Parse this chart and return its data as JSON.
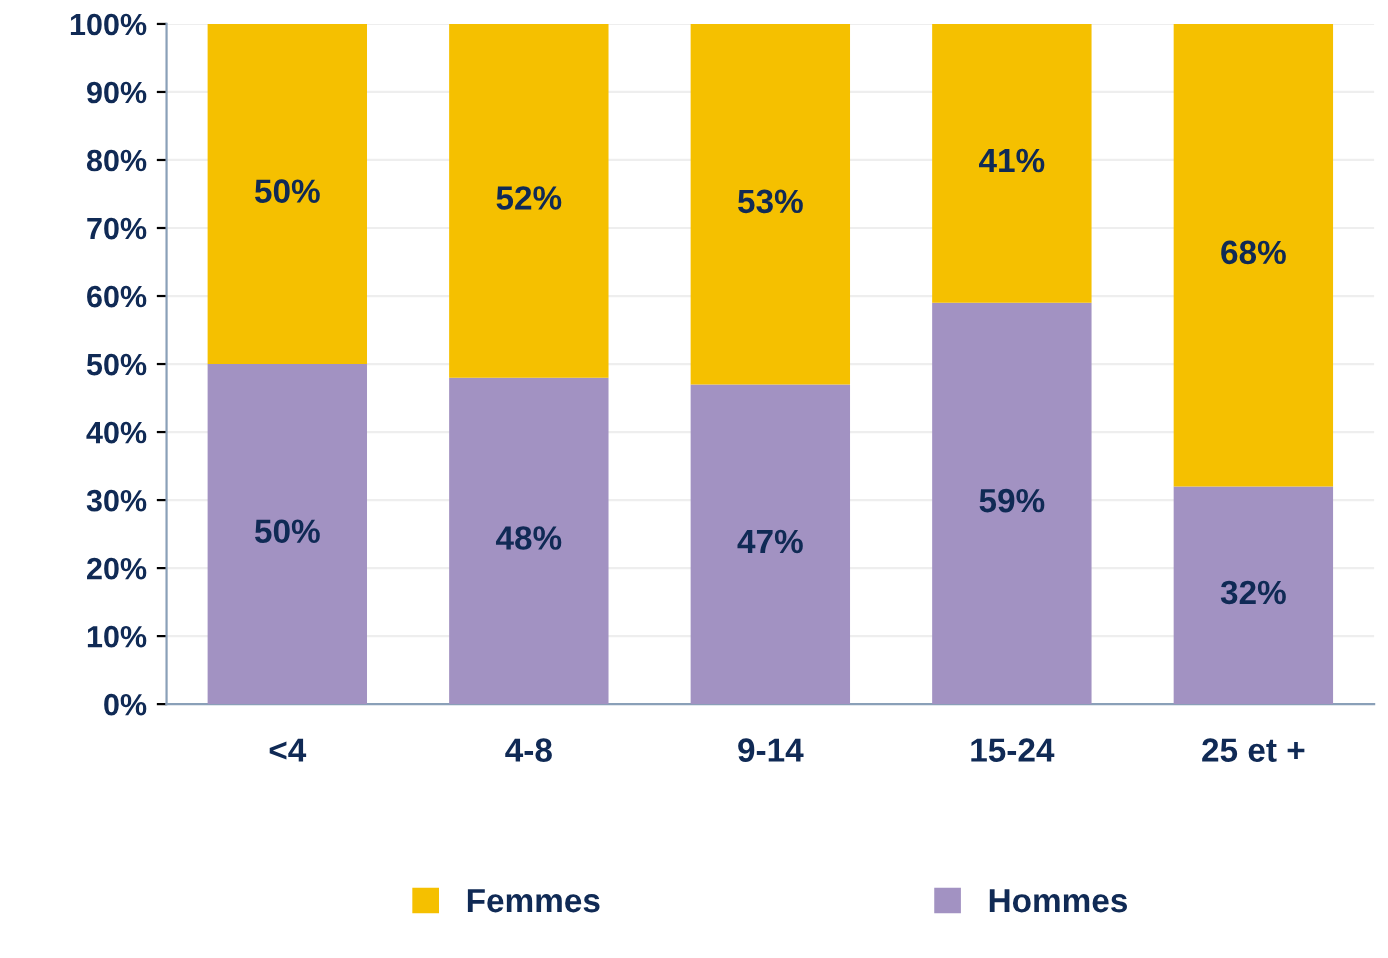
{
  "chart_data": {
    "type": "bar",
    "stacked": true,
    "categories": [
      "<4",
      "4-8",
      "9-14",
      "15-24",
      "25 et +"
    ],
    "series": [
      {
        "name": "Hommes",
        "color": "#a292c2",
        "values": [
          50,
          48,
          47,
          59,
          32
        ],
        "value_labels": [
          "50%",
          "48%",
          "47%",
          "59%",
          "32%"
        ]
      },
      {
        "name": "Femmes",
        "color": "#f5c000",
        "values": [
          50,
          52,
          53,
          41,
          68
        ],
        "value_labels": [
          "50%",
          "52%",
          "53%",
          "41%",
          "68%"
        ]
      }
    ],
    "ylim": [
      0,
      100
    ],
    "yticks": [
      {
        "value": 0,
        "label": "0%"
      },
      {
        "value": 10,
        "label": "10%"
      },
      {
        "value": 20,
        "label": "20%"
      },
      {
        "value": 30,
        "label": "30%"
      },
      {
        "value": 40,
        "label": "40%"
      },
      {
        "value": 50,
        "label": "50%"
      },
      {
        "value": 60,
        "label": "60%"
      },
      {
        "value": 70,
        "label": "70%"
      },
      {
        "value": 80,
        "label": "80%"
      },
      {
        "value": 90,
        "label": "90%"
      },
      {
        "value": 100,
        "label": "100%"
      }
    ],
    "grid": "y",
    "legend": "bottom"
  }
}
